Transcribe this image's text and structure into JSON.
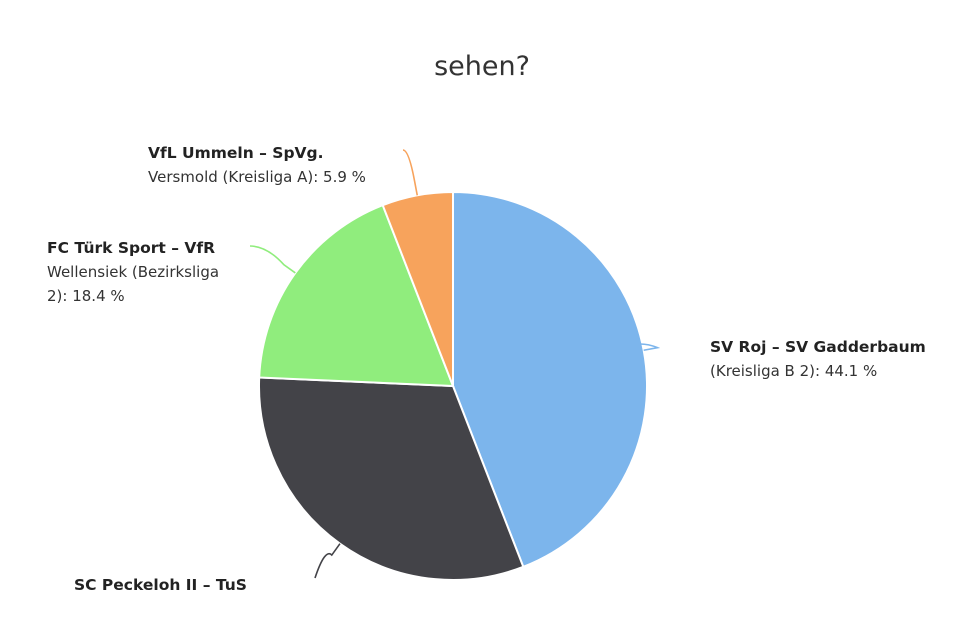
{
  "chart_data": {
    "type": "pie",
    "title": "sehen?",
    "slices": [
      {
        "name_lines": [
          "SV Roj – SV Gadderbaum"
        ],
        "value_lines": [
          "(Kreisliga B 2): 44.1 %"
        ],
        "value": 44.1,
        "color": "#7cb5ec"
      },
      {
        "name_lines": [
          "SC Peckeloh II – TuS"
        ],
        "value_lines": [],
        "value": 31.6,
        "color": "#434348"
      },
      {
        "name_lines": [
          "FC Türk Sport – VfR"
        ],
        "value_lines": [
          "Wellensiek (Bezirksliga",
          "2): 18.4 %"
        ],
        "value": 18.4,
        "color": "#90ed7d"
      },
      {
        "name_lines": [
          "VfL Ummeln – SpVg."
        ],
        "value_lines": [
          "Versmold (Kreisliga A): 5.9 %"
        ],
        "value": 5.9,
        "color": "#f7a35c"
      }
    ]
  }
}
